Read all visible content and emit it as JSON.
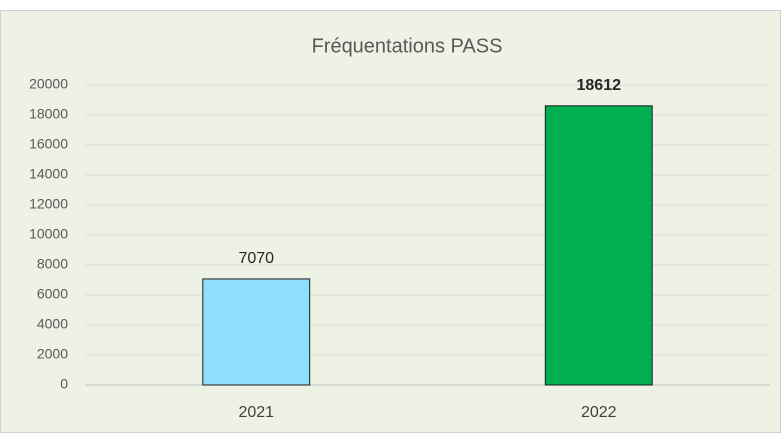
{
  "chart_data": {
    "type": "bar",
    "title": "Fréquentations PASS",
    "categories": [
      "2021",
      "2022"
    ],
    "values": [
      7070,
      18612
    ],
    "colors": [
      "#8fdfff",
      "#00b050"
    ],
    "value_label_bold": [
      false,
      true
    ],
    "ylim": [
      0,
      20000
    ],
    "yticks": [
      0,
      2000,
      4000,
      6000,
      8000,
      10000,
      12000,
      14000,
      16000,
      18000,
      20000
    ],
    "grid": true
  }
}
